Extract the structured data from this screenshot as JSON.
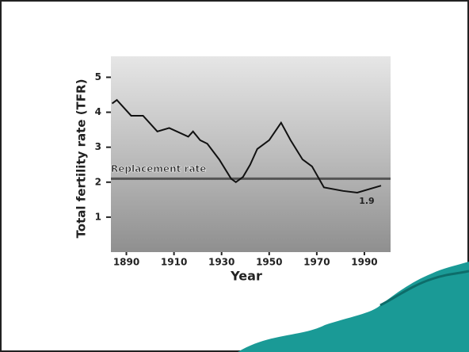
{
  "chart_data": {
    "type": "line",
    "y_label": "Total fertility rate (TFR)",
    "x_label": "Year",
    "x": [
      1884,
      1886,
      1892,
      1897,
      1903,
      1908,
      1916,
      1918,
      1921,
      1924,
      1929,
      1934,
      1936,
      1939,
      1942,
      1945,
      1950,
      1955,
      1959,
      1964,
      1968,
      1973,
      1981,
      1987,
      1997
    ],
    "values": [
      4.25,
      4.35,
      3.9,
      3.9,
      3.45,
      3.55,
      3.3,
      3.45,
      3.2,
      3.1,
      2.65,
      2.1,
      2.0,
      2.15,
      2.5,
      2.95,
      3.2,
      3.7,
      3.2,
      2.65,
      2.45,
      1.85,
      1.75,
      1.7,
      1.9
    ],
    "color": "#111111",
    "xlim": [
      1883.5,
      2001
    ],
    "xticks": [
      1890,
      1910,
      1930,
      1950,
      1970,
      1990
    ],
    "ylim": [
      0,
      5.6
    ],
    "yticks": [
      1,
      2,
      3,
      4,
      5
    ],
    "reference_line": {
      "value": 2.1,
      "label": "Replacement rate",
      "color": "#555555"
    },
    "end_label": "1.9"
  }
}
